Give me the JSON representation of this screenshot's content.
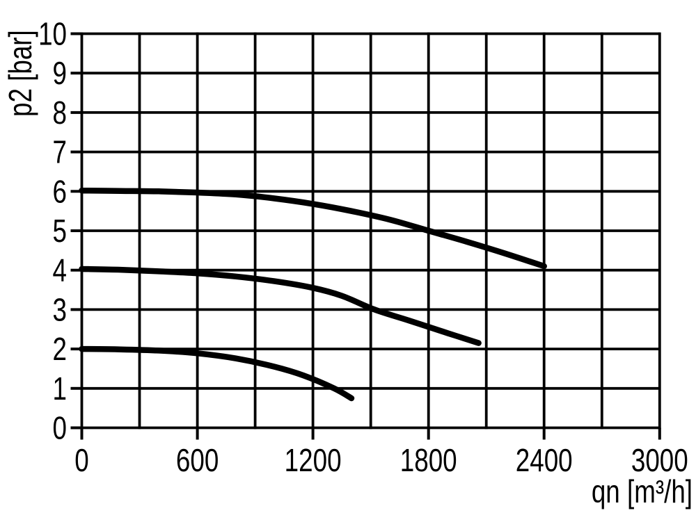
{
  "page": {
    "background_color": "#ffffff"
  },
  "chart_data": {
    "type": "line",
    "title": "",
    "xlabel": "qn [m³/h]",
    "ylabel": "p2 [bar]",
    "xlim": [
      0,
      3000
    ],
    "ylim": [
      0,
      10
    ],
    "x_grid_step": 300,
    "y_grid_step": 1,
    "x_ticks": [
      0,
      600,
      1200,
      1800,
      2400,
      3000
    ],
    "y_ticks": [
      0,
      1,
      2,
      3,
      4,
      5,
      6,
      7,
      8,
      9,
      10
    ],
    "grid": true,
    "legend": false,
    "axis_color": "#000000",
    "line_color": "#000000",
    "series": [
      {
        "name": "curve-6-bar",
        "start_pressure_bar": 6,
        "points": [
          [
            0,
            6.02
          ],
          [
            200,
            6.01
          ],
          [
            400,
            6.0
          ],
          [
            600,
            5.97
          ],
          [
            800,
            5.92
          ],
          [
            1000,
            5.82
          ],
          [
            1200,
            5.68
          ],
          [
            1400,
            5.5
          ],
          [
            1600,
            5.28
          ],
          [
            1800,
            5.0
          ],
          [
            2000,
            4.72
          ],
          [
            2200,
            4.42
          ],
          [
            2400,
            4.1
          ]
        ]
      },
      {
        "name": "curve-4-bar",
        "start_pressure_bar": 4,
        "points": [
          [
            0,
            4.03
          ],
          [
            200,
            4.01
          ],
          [
            400,
            3.97
          ],
          [
            600,
            3.92
          ],
          [
            800,
            3.84
          ],
          [
            1000,
            3.72
          ],
          [
            1200,
            3.55
          ],
          [
            1350,
            3.35
          ],
          [
            1520,
            3.0
          ],
          [
            1700,
            2.72
          ],
          [
            1900,
            2.4
          ],
          [
            2060,
            2.15
          ]
        ]
      },
      {
        "name": "curve-2-bar",
        "start_pressure_bar": 2,
        "points": [
          [
            0,
            2.0
          ],
          [
            200,
            1.99
          ],
          [
            400,
            1.96
          ],
          [
            600,
            1.89
          ],
          [
            800,
            1.76
          ],
          [
            1000,
            1.55
          ],
          [
            1150,
            1.33
          ],
          [
            1310,
            1.0
          ],
          [
            1400,
            0.75
          ]
        ]
      }
    ]
  }
}
